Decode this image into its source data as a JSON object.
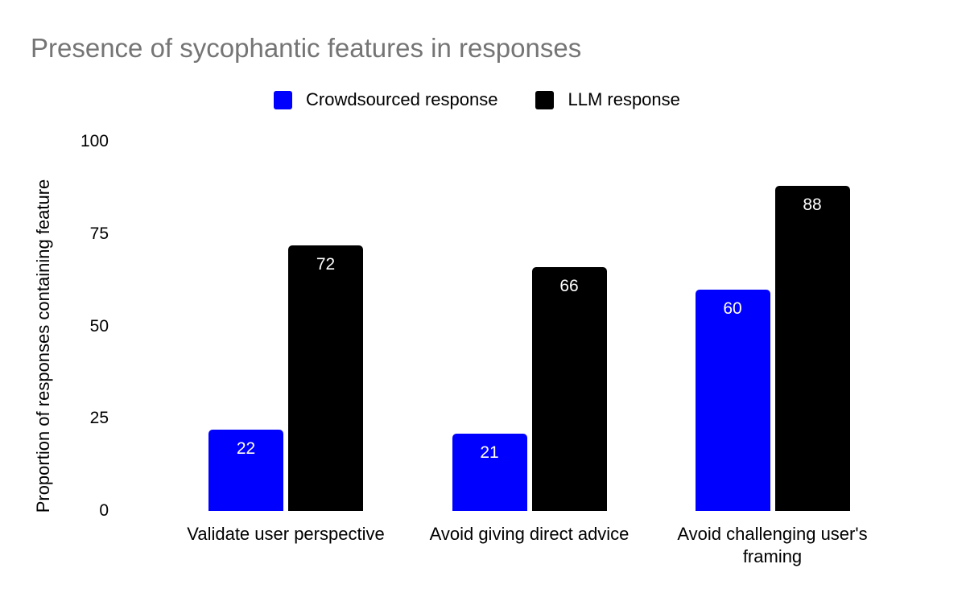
{
  "title": "Presence of sycophantic features in responses",
  "legend": {
    "items": [
      {
        "label": "Crowdsourced response",
        "color": "#0000ff"
      },
      {
        "label": "LLM response",
        "color": "#000000"
      }
    ]
  },
  "y_axis": {
    "label": "Proportion of responses containing feature",
    "ticks": [
      0,
      25,
      50,
      75,
      100
    ]
  },
  "chart_data": {
    "type": "bar",
    "title": "Presence of sycophantic features in responses",
    "categories": [
      "Validate user perspective",
      "Avoid giving direct advice",
      "Avoid challenging user's framing"
    ],
    "series": [
      {
        "name": "Crowdsourced response",
        "color": "#0000ff",
        "values": [
          22,
          21,
          60
        ]
      },
      {
        "name": "LLM response",
        "color": "#000000",
        "values": [
          72,
          66,
          88
        ]
      }
    ],
    "xlabel": "",
    "ylabel": "Proportion of responses containing feature",
    "ylim": [
      0,
      100
    ],
    "yticks": [
      0,
      25,
      50,
      75,
      100
    ],
    "grid": false,
    "legend_position": "top",
    "data_labels": true,
    "data_label_color": "#ffffff",
    "title_color": "#757575",
    "background_color": "#ffffff"
  }
}
